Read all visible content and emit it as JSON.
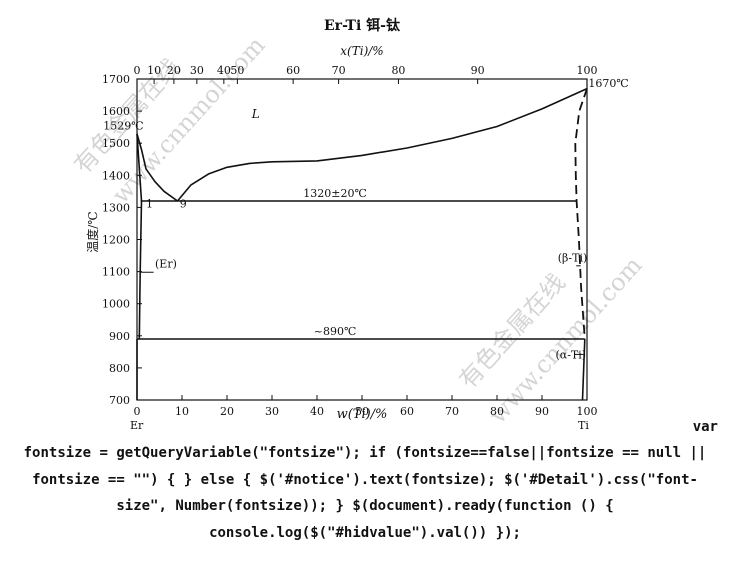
{
  "chart_data": {
    "type": "line",
    "title": "Er-Ti  铒-钛",
    "top_axis_label": "x(Ti)/%",
    "bottom_axis_label": "w(Ti)/%",
    "ylabel": "温度/℃",
    "xlim": [
      0,
      100
    ],
    "ylim": [
      700,
      1700
    ],
    "x_ticks": [
      "0",
      "10",
      "20",
      "30",
      "40",
      "50",
      "60",
      "70",
      "80",
      "90",
      "100"
    ],
    "top_ticks": [
      {
        "label": "0",
        "w": 0
      },
      {
        "label": "10",
        "w": 3.8
      },
      {
        "label": "20",
        "w": 8.2
      },
      {
        "label": "30",
        "w": 13.3
      },
      {
        "label": "40",
        "w": 19.3
      },
      {
        "label": "50",
        "w": 22.3
      },
      {
        "label": "60",
        "w": 34.7
      },
      {
        "label": "70",
        "w": 44.8
      },
      {
        "label": "80",
        "w": 58.1
      },
      {
        "label": "90",
        "w": 75.7
      },
      {
        "label": "100",
        "w": 100
      }
    ],
    "y_ticks": [
      "700",
      "800",
      "900",
      "1000",
      "1100",
      "1200",
      "1300",
      "1400",
      "1500",
      "1600",
      "1700"
    ],
    "grid": false,
    "series": [
      {
        "kind": "solid",
        "points": [
          [
            0,
            1529
          ],
          [
            1,
            1480
          ],
          [
            2,
            1420
          ],
          [
            4,
            1380
          ],
          [
            6,
            1350
          ],
          [
            9,
            1320
          ]
        ]
      },
      {
        "kind": "solid",
        "points": [
          [
            9,
            1320
          ],
          [
            12,
            1370
          ],
          [
            16,
            1405
          ],
          [
            20,
            1425
          ],
          [
            25,
            1437
          ],
          [
            30,
            1442
          ],
          [
            40,
            1445
          ],
          [
            50,
            1462
          ],
          [
            60,
            1485
          ],
          [
            70,
            1515
          ],
          [
            80,
            1552
          ],
          [
            90,
            1607
          ],
          [
            100,
            1670
          ]
        ]
      },
      {
        "kind": "solid",
        "points": [
          [
            0,
            1529
          ],
          [
            1,
            1320
          ],
          [
            0.7,
            1100
          ],
          [
            0.5,
            890
          ]
        ]
      },
      {
        "kind": "solid",
        "points": [
          [
            0,
            890
          ],
          [
            0,
            700
          ]
        ]
      },
      {
        "kind": "solid",
        "points": [
          [
            0.8,
            1320
          ],
          [
            97.7,
            1320
          ]
        ]
      },
      {
        "kind": "solid",
        "points": [
          [
            0,
            890
          ],
          [
            99.5,
            890
          ]
        ]
      },
      {
        "kind": "solid",
        "points": [
          [
            99.5,
            890
          ],
          [
            99,
            700
          ]
        ]
      },
      {
        "kind": "dashed",
        "points": [
          [
            100,
            1670
          ],
          [
            98.3,
            1600
          ],
          [
            97.4,
            1500
          ],
          [
            97.5,
            1400
          ],
          [
            97.7,
            1320
          ],
          [
            98.2,
            1200
          ],
          [
            98.7,
            1050
          ],
          [
            99.5,
            890
          ]
        ]
      }
    ],
    "annotations": [
      {
        "text": "L",
        "x": 25.5,
        "y": 1578,
        "italic": true
      },
      {
        "text": "1529℃",
        "x": -7.5,
        "y": 1543
      },
      {
        "text": "1670℃",
        "x": 100.3,
        "y": 1675
      },
      {
        "text": "1320±20℃",
        "x": 44,
        "y": 1333
      },
      {
        "text": "1",
        "x": 2,
        "y": 1300
      },
      {
        "text": "9",
        "x": 9.5,
        "y": 1300
      },
      {
        "text": "(Er)",
        "x": 4,
        "y": 1113
      },
      {
        "text": "(β-Ti)",
        "x": 93.5,
        "y": 1132
      },
      {
        "text": "~890℃",
        "x": 44,
        "y": 903
      },
      {
        "text": "(α-Ti)",
        "x": 93,
        "y": 830
      }
    ],
    "corner_labels": {
      "left": "Er",
      "right": "Ti"
    }
  },
  "watermarks": [
    "有色金属在线",
    "www.cnnmol.com"
  ],
  "code_text": {
    "tail": "var",
    "body": "fontsize = getQueryVariable(\"fontsize\"); if (fontsize==false||fontsize == null || fontsize == \"\") { } else { $('#notice').text(fontsize); $('#Detail').css(\"font-size\", Number(fontsize)); } $(document).ready(function () { console.log($(\"#hidvalue\").val()) });"
  }
}
